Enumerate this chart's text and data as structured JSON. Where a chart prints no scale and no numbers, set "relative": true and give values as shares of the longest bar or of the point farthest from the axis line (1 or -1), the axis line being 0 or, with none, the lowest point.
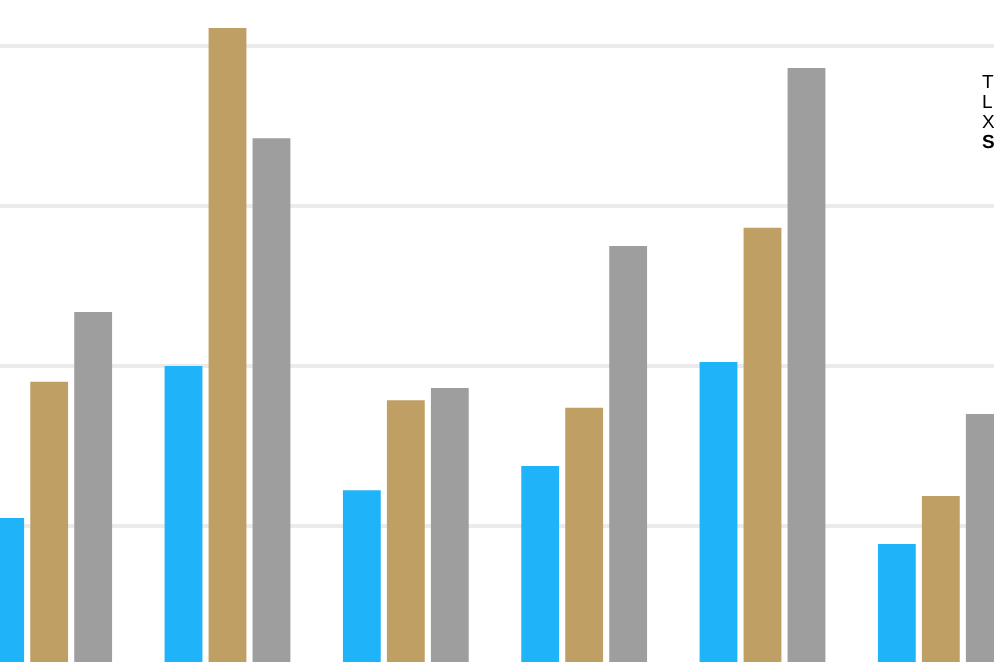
{
  "chart_data": {
    "type": "bar",
    "relative": true,
    "grid": "y",
    "categories": [
      null,
      null,
      null,
      null,
      null,
      null
    ],
    "series": [
      {
        "color": "#1fb3fa",
        "values": [
          0.227,
          0.467,
          0.271,
          0.309,
          0.473,
          0.186
        ]
      },
      {
        "color": "#bf9f63",
        "values": [
          0.442,
          1,
          0.413,
          0.401,
          0.685,
          0.262
        ]
      },
      {
        "color": "#9e9e9e",
        "values": [
          0.552,
          0.826,
          0.432,
          0.656,
          0.937,
          0.391
        ]
      }
    ],
    "annotations": [
      "T",
      "L",
      "X",
      "S"
    ]
  }
}
